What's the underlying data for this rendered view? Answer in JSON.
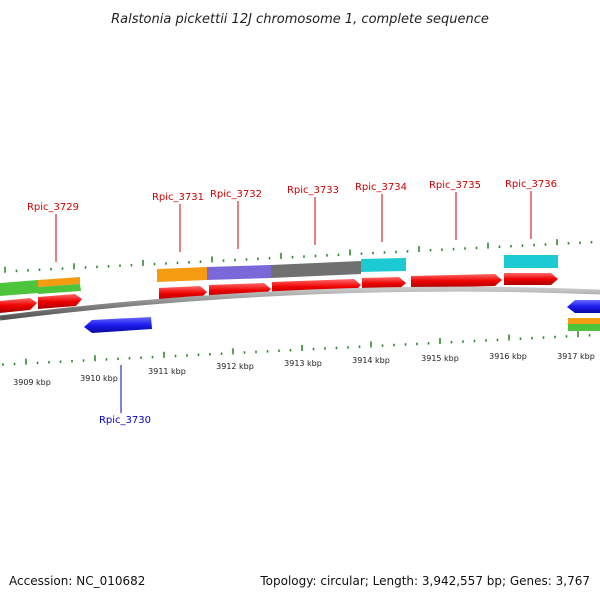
{
  "title": "Ralstonia pickettii 12J chromosome 1, complete sequence",
  "footer": {
    "accession": "Accession: NC_010682",
    "summary": "Topology: circular; Length: 3,942,557 bp; Genes: 3,767"
  },
  "colors": {
    "forward_cds": "#ee0000",
    "reverse_cds": "#1a1aee",
    "backbone": "#888888",
    "tick": "#2e8b2e",
    "label_forward": "#cc0000",
    "label_reverse": "#0000cc",
    "orange": "#f39c12",
    "green": "#4cc43c",
    "purple": "#7b68d8",
    "gray": "#707070",
    "cyan": "#1ccad3"
  },
  "kbp_labels": [
    "3909 kbp",
    "3910 kbp",
    "3911 kbp",
    "3912 kbp",
    "3913 kbp",
    "3914 kbp",
    "3915 kbp",
    "3916 kbp",
    "3917 kbp"
  ],
  "gene_labels": [
    {
      "name": "Rpic_3729",
      "strand": "forward"
    },
    {
      "name": "Rpic_3730",
      "strand": "reverse"
    },
    {
      "name": "Rpic_3731",
      "strand": "forward"
    },
    {
      "name": "Rpic_3732",
      "strand": "forward"
    },
    {
      "name": "Rpic_3733",
      "strand": "forward"
    },
    {
      "name": "Rpic_3734",
      "strand": "forward"
    },
    {
      "name": "Rpic_3735",
      "strand": "forward"
    },
    {
      "name": "Rpic_3736",
      "strand": "forward"
    }
  ]
}
